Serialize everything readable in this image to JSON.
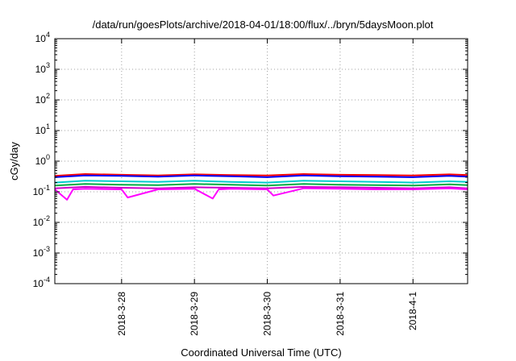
{
  "chart_data": {
    "type": "line",
    "title": "/data/run/goesPlots/archive/2018-04-01/18:00/flux/../bryn/5daysMoon.plot",
    "xlabel": "Coordinated Universal Time (UTC)",
    "ylabel": "cGy/day",
    "y_scale": "log",
    "ylim": [
      0.0001,
      10000
    ],
    "y_ticks": [
      {
        "value": 0.0001,
        "base": "10",
        "exp": "-4"
      },
      {
        "value": 0.001,
        "base": "10",
        "exp": "-3"
      },
      {
        "value": 0.01,
        "base": "10",
        "exp": "-2"
      },
      {
        "value": 0.1,
        "base": "10",
        "exp": "-1"
      },
      {
        "value": 1,
        "base": "10",
        "exp": "0"
      },
      {
        "value": 10,
        "base": "10",
        "exp": "1"
      },
      {
        "value": 100,
        "base": "10",
        "exp": "2"
      },
      {
        "value": 1000,
        "base": "10",
        "exp": "3"
      },
      {
        "value": 10000,
        "base": "10",
        "exp": "4"
      }
    ],
    "xlim": [
      "2018-03-27 02:00",
      "2018-04-01 18:00"
    ],
    "x_ticks": [
      {
        "label": "2018-3-28",
        "value": "2018-03-28 00:00"
      },
      {
        "label": "2018-3-29",
        "value": "2018-03-29 00:00"
      },
      {
        "label": "2018-3-30",
        "value": "2018-03-30 00:00"
      },
      {
        "label": "2018-3-31",
        "value": "2018-03-31 00:00"
      },
      {
        "label": "2018-4-1",
        "value": "2018-04-01 00:00"
      }
    ],
    "grid": true,
    "series": [
      {
        "color": "#ff0000",
        "x": [
          "2018-03-27 02:00",
          "2018-03-27 12:00",
          "2018-03-28 00:00",
          "2018-03-28 12:00",
          "2018-03-29 00:00",
          "2018-03-29 12:00",
          "2018-03-30 00:00",
          "2018-03-30 12:00",
          "2018-03-31 00:00",
          "2018-03-31 12:00",
          "2018-04-01 00:00",
          "2018-04-01 12:00",
          "2018-04-01 18:00"
        ],
        "y": [
          0.33,
          0.38,
          0.36,
          0.34,
          0.37,
          0.35,
          0.34,
          0.38,
          0.36,
          0.35,
          0.34,
          0.37,
          0.35
        ]
      },
      {
        "color": "#0000ff",
        "x": [
          "2018-03-27 02:00",
          "2018-03-27 12:00",
          "2018-03-28 00:00",
          "2018-03-28 12:00",
          "2018-03-29 00:00",
          "2018-03-29 12:00",
          "2018-03-30 00:00",
          "2018-03-30 12:00",
          "2018-03-31 00:00",
          "2018-03-31 12:00",
          "2018-04-01 00:00",
          "2018-04-01 12:00",
          "2018-04-01 18:00"
        ],
        "y": [
          0.3,
          0.34,
          0.33,
          0.31,
          0.34,
          0.32,
          0.3,
          0.34,
          0.32,
          0.31,
          0.3,
          0.33,
          0.31
        ]
      },
      {
        "color": "#00cccc",
        "x": [
          "2018-03-27 02:00",
          "2018-03-27 12:00",
          "2018-03-28 00:00",
          "2018-03-28 12:00",
          "2018-03-29 00:00",
          "2018-03-29 12:00",
          "2018-03-30 00:00",
          "2018-03-30 12:00",
          "2018-03-31 00:00",
          "2018-03-31 12:00",
          "2018-04-01 00:00",
          "2018-04-01 12:00",
          "2018-04-01 18:00"
        ],
        "y": [
          0.2,
          0.23,
          0.22,
          0.21,
          0.23,
          0.21,
          0.2,
          0.23,
          0.22,
          0.21,
          0.2,
          0.22,
          0.21
        ]
      },
      {
        "color": "#00aa44",
        "x": [
          "2018-03-27 02:00",
          "2018-03-27 12:00",
          "2018-03-28 00:00",
          "2018-03-28 12:00",
          "2018-03-29 00:00",
          "2018-03-29 12:00",
          "2018-03-30 00:00",
          "2018-03-30 12:00",
          "2018-03-31 00:00",
          "2018-03-31 12:00",
          "2018-04-01 00:00",
          "2018-04-01 12:00",
          "2018-04-01 18:00"
        ],
        "y": [
          0.16,
          0.18,
          0.17,
          0.165,
          0.18,
          0.17,
          0.16,
          0.18,
          0.17,
          0.165,
          0.16,
          0.175,
          0.165
        ]
      },
      {
        "color": "#cc00cc",
        "x": [
          "2018-03-27 02:00",
          "2018-03-27 12:00",
          "2018-03-28 00:00",
          "2018-03-28 12:00",
          "2018-03-29 00:00",
          "2018-03-29 12:00",
          "2018-03-30 00:00",
          "2018-03-30 12:00",
          "2018-03-31 00:00",
          "2018-03-31 12:00",
          "2018-04-01 00:00",
          "2018-04-01 12:00",
          "2018-04-01 18:00"
        ],
        "y": [
          0.13,
          0.145,
          0.135,
          0.13,
          0.14,
          0.135,
          0.13,
          0.145,
          0.14,
          0.135,
          0.13,
          0.14,
          0.13
        ]
      },
      {
        "color": "#ff00ff",
        "x": [
          "2018-03-27 02:00",
          "2018-03-27 06:00",
          "2018-03-27 08:00",
          "2018-03-27 12:00",
          "2018-03-28 00:00",
          "2018-03-28 02:00",
          "2018-03-28 12:00",
          "2018-03-29 00:00",
          "2018-03-29 06:00",
          "2018-03-29 08:00",
          "2018-03-29 12:00",
          "2018-03-30 00:00",
          "2018-03-30 02:00",
          "2018-03-30 12:00",
          "2018-03-31 00:00",
          "2018-03-31 12:00",
          "2018-04-01 00:00",
          "2018-04-01 12:00",
          "2018-04-01 18:00"
        ],
        "y": [
          0.12,
          0.055,
          0.12,
          0.125,
          0.12,
          0.065,
          0.12,
          0.125,
          0.06,
          0.12,
          0.125,
          0.12,
          0.075,
          0.13,
          0.125,
          0.12,
          0.12,
          0.13,
          0.12
        ]
      }
    ]
  }
}
